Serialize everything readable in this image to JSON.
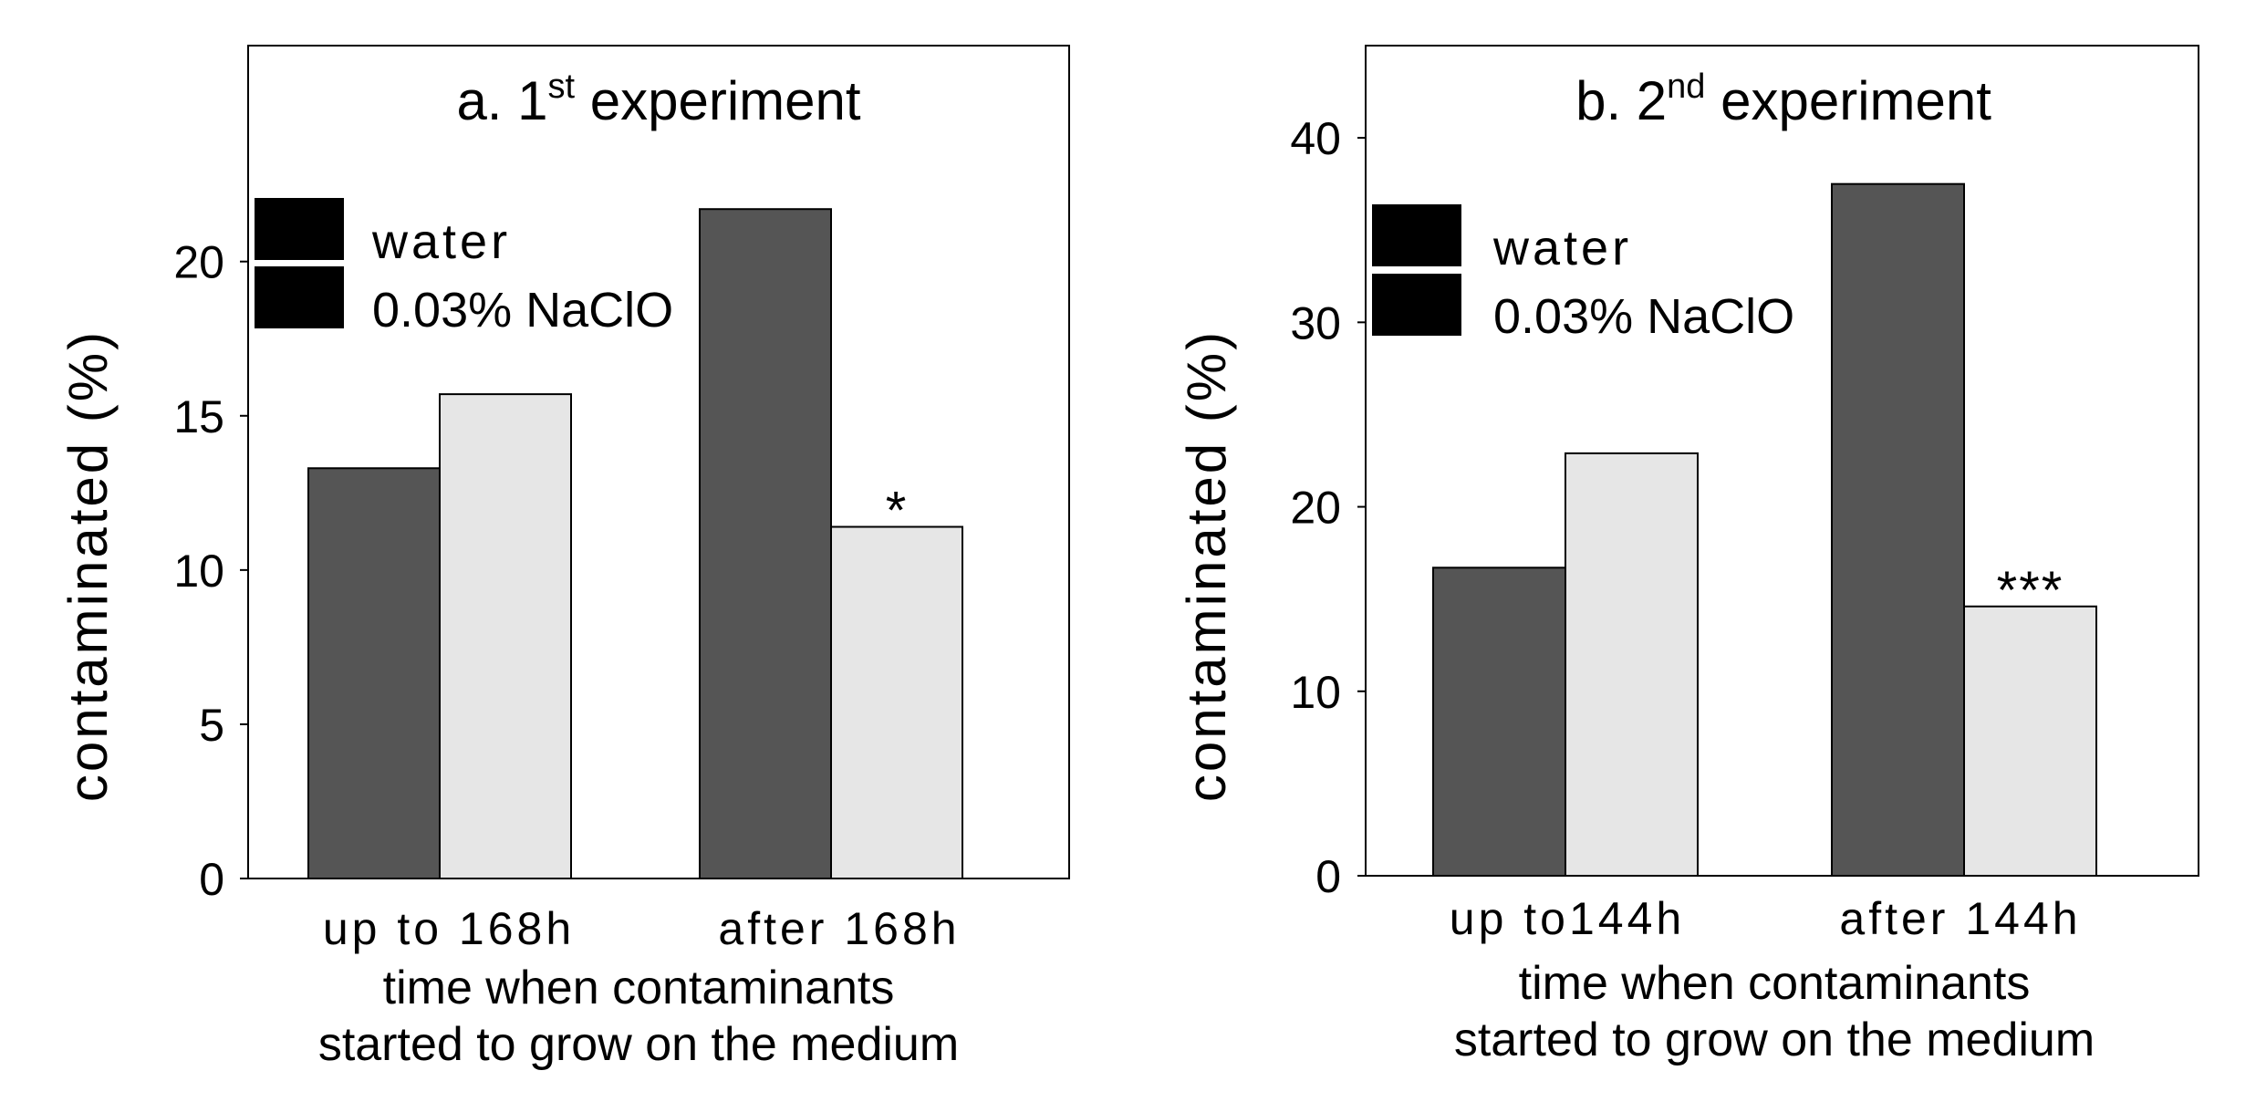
{
  "colors": {
    "water": "#555555",
    "naclo": "#e6e6e6",
    "axis": "#000000",
    "background": "#ffffff"
  },
  "chart_data": [
    {
      "type": "bar",
      "title": "a. 1st experiment",
      "title_main": "a. 1",
      "title_sup": "st",
      "title_rest": " experiment",
      "xlabel_line1": "time when contaminants",
      "xlabel_line2": "started to grow on the medium",
      "ylabel": "contaminated (%)",
      "ylim": [
        0,
        27
      ],
      "yticks": [
        0,
        5,
        10,
        15,
        20
      ],
      "ytick_labels": [
        "0",
        "5",
        "10",
        "15",
        "20"
      ],
      "categories": [
        "up to 168h",
        "after 168h"
      ],
      "series": [
        {
          "name": "water",
          "values": [
            13.3,
            21.7
          ]
        },
        {
          "name": "0.03% NaClO",
          "values": [
            15.7,
            11.4
          ]
        }
      ],
      "annotations": [
        {
          "category": 1,
          "series": 1,
          "text": "*"
        }
      ],
      "legend": "top-left",
      "grid": false
    },
    {
      "type": "bar",
      "title": "b. 2nd experiment",
      "title_main": "b. 2",
      "title_sup": "nd",
      "title_rest": " experiment",
      "xlabel_line1": "time when contaminants",
      "xlabel_line2": "started to grow on the medium",
      "ylabel": "contaminated (%)",
      "ylim": [
        0,
        45
      ],
      "yticks": [
        0,
        10,
        20,
        30,
        40
      ],
      "ytick_labels": [
        "0",
        "10",
        "20",
        "30",
        "40"
      ],
      "categories": [
        "up to144h",
        "after 144h"
      ],
      "series": [
        {
          "name": "water",
          "values": [
            16.7,
            37.5
          ]
        },
        {
          "name": "0.03% NaClO",
          "values": [
            22.9,
            14.6
          ]
        }
      ],
      "annotations": [
        {
          "category": 1,
          "series": 1,
          "text": "***"
        }
      ],
      "legend": "top-left",
      "grid": false
    }
  ]
}
